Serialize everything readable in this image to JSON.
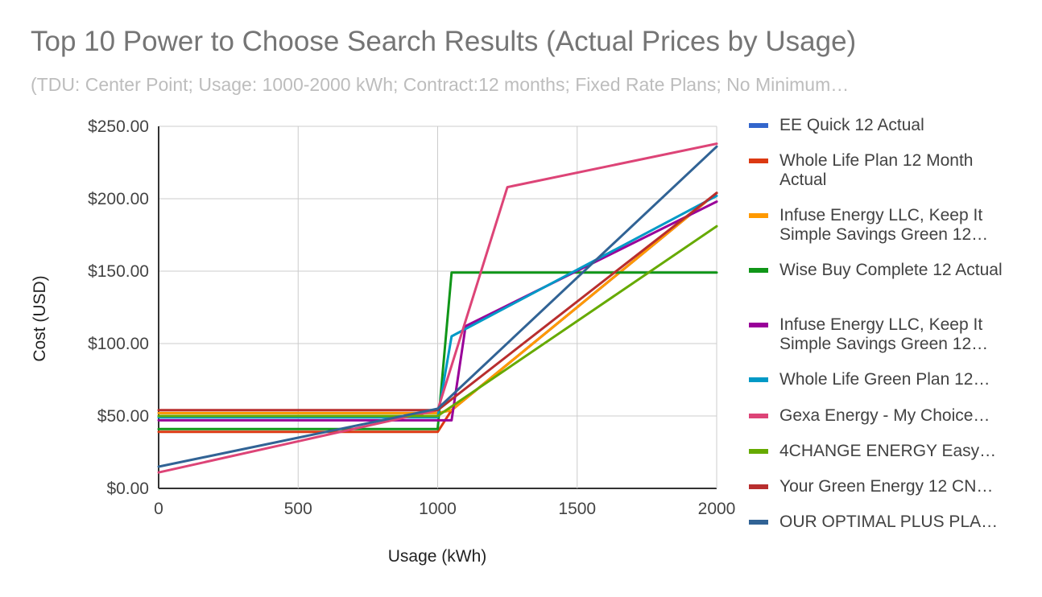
{
  "chart_data": {
    "type": "line",
    "title": "Top 10 Power to Choose Search Results (Actual Prices by Usage)",
    "subtitle": "(TDU: Center Point; Usage: 1000-2000 kWh; Contract:12 months; Fixed Rate Plans; No Minimum…",
    "xlabel": "Usage (kWh)",
    "ylabel": "Cost (USD)",
    "xlim": [
      0,
      2000
    ],
    "ylim": [
      0,
      250
    ],
    "x_ticks": [
      "0",
      "500",
      "1000",
      "1500",
      "2000"
    ],
    "y_ticks": [
      "$0.00",
      "$50.00",
      "$100.00",
      "$150.00",
      "$200.00",
      "$250.00"
    ],
    "grid": true,
    "legend_position": "right",
    "series": [
      {
        "name": "EE Quick 12 Actual",
        "color": "#3366cc",
        "points": [
          [
            0,
            52
          ],
          [
            1000,
            52
          ],
          [
            1050,
            54
          ],
          [
            2000,
            204
          ]
        ]
      },
      {
        "name": "Whole Life Plan 12 Month Actual",
        "color": "#dc3912",
        "points": [
          [
            0,
            39
          ],
          [
            1000,
            39
          ],
          [
            1050,
            54
          ],
          [
            2000,
            204
          ]
        ]
      },
      {
        "name": " Infuse Energy LLC, Keep It Simple Savings Green 12…",
        "color": "#ff9900",
        "points": [
          [
            0,
            52
          ],
          [
            1000,
            52
          ],
          [
            1050,
            54
          ],
          [
            2000,
            204
          ]
        ]
      },
      {
        "name": "Wise Buy Complete 12 Actual",
        "color": "#109618",
        "points": [
          [
            0,
            41
          ],
          [
            1000,
            41
          ],
          [
            1050,
            149
          ],
          [
            2000,
            149
          ]
        ]
      },
      {
        "name": "Infuse Energy LLC, Keep It Simple Savings Green 12…",
        "color": "#990099",
        "points": [
          [
            0,
            47
          ],
          [
            1000,
            47
          ],
          [
            1050,
            47
          ],
          [
            1100,
            112
          ],
          [
            2000,
            198
          ]
        ]
      },
      {
        "name": "Whole Life Green Plan 12…",
        "color": "#0099c6",
        "points": [
          [
            0,
            49
          ],
          [
            1000,
            49
          ],
          [
            1050,
            105
          ],
          [
            2000,
            202
          ]
        ]
      },
      {
        "name": "Gexa Energy - My Choice…",
        "color": "#dd4477",
        "points": [
          [
            0,
            11
          ],
          [
            1000,
            54
          ],
          [
            1250,
            208
          ],
          [
            2000,
            238
          ]
        ]
      },
      {
        "name": "4CHANGE ENERGY Easy…",
        "color": "#66aa00",
        "points": [
          [
            0,
            50
          ],
          [
            1000,
            50
          ],
          [
            2000,
            181
          ]
        ]
      },
      {
        "name": "Your Green Energy 12 CN…",
        "color": "#b82e2e",
        "points": [
          [
            0,
            54
          ],
          [
            1000,
            54
          ],
          [
            2000,
            204
          ]
        ]
      },
      {
        "name": "OUR OPTIMAL PLUS PLA…",
        "color": "#316395",
        "points": [
          [
            0,
            15
          ],
          [
            1000,
            55
          ],
          [
            2000,
            236
          ]
        ]
      }
    ]
  }
}
